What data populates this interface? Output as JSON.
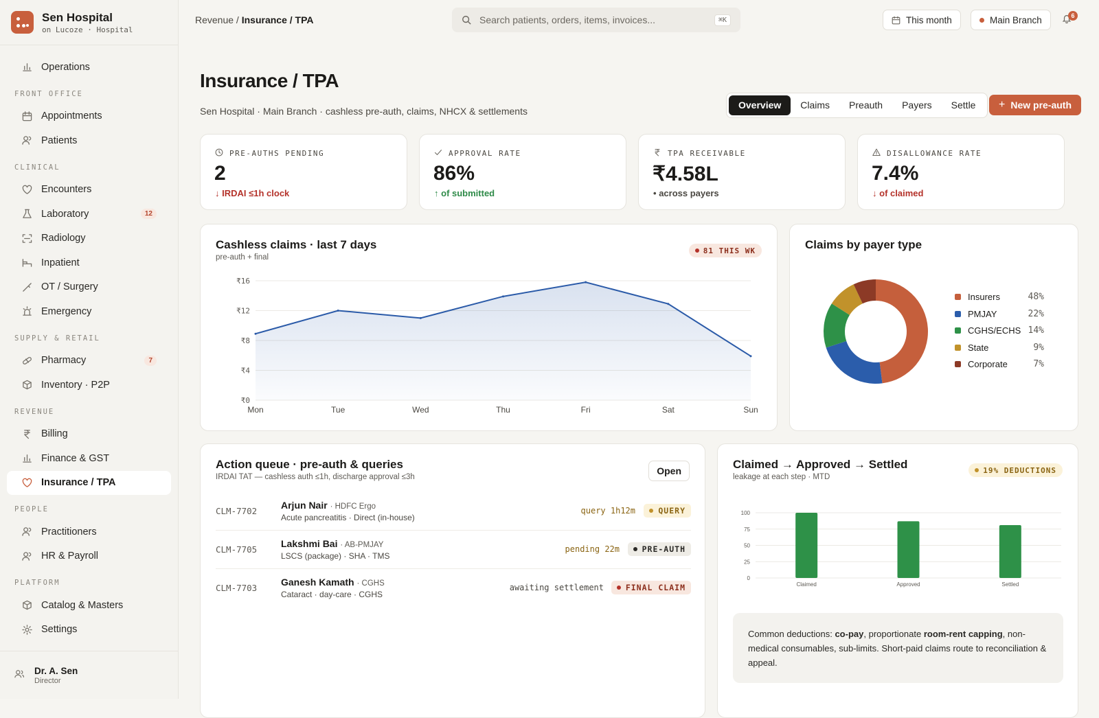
{
  "brand": {
    "name": "Sen Hospital",
    "sub": "on Lucoze · Hospital"
  },
  "sidebar": {
    "top": [
      {
        "label": "Operations",
        "icon": "bar-chart-icon"
      }
    ],
    "sections": [
      {
        "title": "FRONT OFFICE",
        "items": [
          {
            "label": "Appointments",
            "icon": "calendar-icon"
          },
          {
            "label": "Patients",
            "icon": "users-icon"
          }
        ]
      },
      {
        "title": "CLINICAL",
        "items": [
          {
            "label": "Encounters",
            "icon": "heart-icon"
          },
          {
            "label": "Laboratory",
            "icon": "flask-icon",
            "badge": "12"
          },
          {
            "label": "Radiology",
            "icon": "scan-icon"
          },
          {
            "label": "Inpatient",
            "icon": "bed-icon"
          },
          {
            "label": "OT / Surgery",
            "icon": "scalpel-icon"
          },
          {
            "label": "Emergency",
            "icon": "siren-icon"
          }
        ]
      },
      {
        "title": "SUPPLY & RETAIL",
        "items": [
          {
            "label": "Pharmacy",
            "icon": "pill-icon",
            "badge": "7"
          },
          {
            "label": "Inventory · P2P",
            "icon": "box-icon"
          }
        ]
      },
      {
        "title": "REVENUE",
        "items": [
          {
            "label": "Billing",
            "icon": "rupee-icon"
          },
          {
            "label": "Finance & GST",
            "icon": "bar-chart-icon"
          },
          {
            "label": "Insurance / TPA",
            "icon": "heart-icon",
            "active": true
          }
        ]
      },
      {
        "title": "PEOPLE",
        "items": [
          {
            "label": "Practitioners",
            "icon": "users-icon"
          },
          {
            "label": "HR & Payroll",
            "icon": "users-icon"
          }
        ]
      },
      {
        "title": "PLATFORM",
        "items": [
          {
            "label": "Catalog & Masters",
            "icon": "box-icon"
          },
          {
            "label": "Settings",
            "icon": "gear-icon"
          }
        ]
      }
    ],
    "user": {
      "name": "Dr. A. Sen",
      "role": "Director"
    }
  },
  "topbar": {
    "crumb_parent": "Revenue",
    "crumb_current": "Insurance / TPA",
    "search_placeholder": "Search patients, orders, items, invoices...",
    "search_kbd": "⌘K",
    "period": "This month",
    "branch": "Main Branch",
    "notifications": "6"
  },
  "page": {
    "title": "Insurance / TPA",
    "subtitle": "Sen Hospital · Main Branch · cashless pre-auth, claims, NHCX & settlements",
    "tabs": [
      "Overview",
      "Claims",
      "Preauth",
      "Payers",
      "Settle"
    ],
    "primary_action": "New pre-auth"
  },
  "kpis": [
    {
      "label": "PRE-AUTHS PENDING",
      "value": "2",
      "note": "IRDAI ≤1h clock",
      "arrow": "↓",
      "tone": "red",
      "icon": "clock-icon"
    },
    {
      "label": "APPROVAL RATE",
      "value": "86%",
      "note": "of submitted",
      "arrow": "↑",
      "tone": "green",
      "icon": "check-icon"
    },
    {
      "label": "TPA RECEIVABLE",
      "value": "₹4.58L",
      "note": "across payers",
      "arrow": "•",
      "tone": "muted",
      "icon": "rupee-icon"
    },
    {
      "label": "DISALLOWANCE RATE",
      "value": "7.4%",
      "note": "of claimed",
      "arrow": "↓",
      "tone": "red",
      "icon": "warning-icon"
    }
  ],
  "cashless": {
    "title": "Cashless claims · last 7 days",
    "subtitle": "pre-auth + final",
    "tag": "81 THIS WK"
  },
  "payer": {
    "title": "Claims by payer type"
  },
  "queue": {
    "title": "Action queue · pre-auth & queries",
    "subtitle": "IRDAI TAT — cashless auth ≤1h, discharge approval ≤3h",
    "open_label": "Open",
    "rows": [
      {
        "id": "CLM-7702",
        "name": "Arjun Nair",
        "payer": "· HDFC Ergo",
        "detail": "Acute pancreatitis · Direct (in-house)",
        "status": "query 1h12m",
        "chip": "QUERY"
      },
      {
        "id": "CLM-7705",
        "name": "Lakshmi Bai",
        "payer": "· AB-PMJAY",
        "detail": "LSCS (package) · SHA · TMS",
        "status": "pending 22m",
        "chip": "PRE-AUTH"
      },
      {
        "id": "CLM-7703",
        "name": "Ganesh Kamath",
        "payer": "· CGHS",
        "detail": "Cataract · day-care · CGHS",
        "status": "awaiting settlement",
        "chip": "FINAL CLAIM"
      }
    ]
  },
  "funnel": {
    "title": "Claimed → Approved → Settled",
    "subtitle": "leakage at each step · MTD",
    "tag": "19% DEDUCTIONS",
    "note_prefix": "Common deductions: ",
    "note_b1": "co-pay",
    "note_mid": ", proportionate ",
    "note_b2": "room-rent capping",
    "note_suffix": ", non-medical consumables, sub-limits. Short-paid claims route to reconciliation & appeal."
  },
  "chart_data": [
    {
      "type": "area",
      "title": "Cashless claims · last 7 days",
      "subtitle": "pre-auth + final",
      "categories": [
        "Mon",
        "Tue",
        "Wed",
        "Thu",
        "Fri",
        "Sat",
        "Sun"
      ],
      "values": [
        8.9,
        12.0,
        11.0,
        13.9,
        15.8,
        12.9,
        5.9
      ],
      "ytick_labels": [
        "₹0",
        "₹4",
        "₹8",
        "₹12",
        "₹16"
      ],
      "ylim": [
        0,
        16
      ],
      "grid": true,
      "color": "#2a5aa8"
    },
    {
      "type": "pie",
      "title": "Claims by payer type",
      "donut": true,
      "labels": [
        "Insurers",
        "PMJAY",
        "CGHS/ECHS",
        "State",
        "Corporate"
      ],
      "values": [
        48,
        22,
        14,
        9,
        7
      ],
      "value_labels": [
        "48%",
        "22%",
        "14%",
        "9%",
        "7%"
      ],
      "colors": [
        "#c55f3c",
        "#2b5dab",
        "#2e9148",
        "#c1922b",
        "#8c3a26"
      ],
      "legend": "right"
    },
    {
      "type": "bar",
      "title": "Claimed → Approved → Settled",
      "categories": [
        "Claimed",
        "Approved",
        "Settled"
      ],
      "values": [
        100,
        87,
        81
      ],
      "ytick_labels": [
        "0",
        "25",
        "50",
        "75",
        "100"
      ],
      "ylim": [
        0,
        100
      ],
      "grid": true,
      "color": "#2e9148"
    }
  ]
}
